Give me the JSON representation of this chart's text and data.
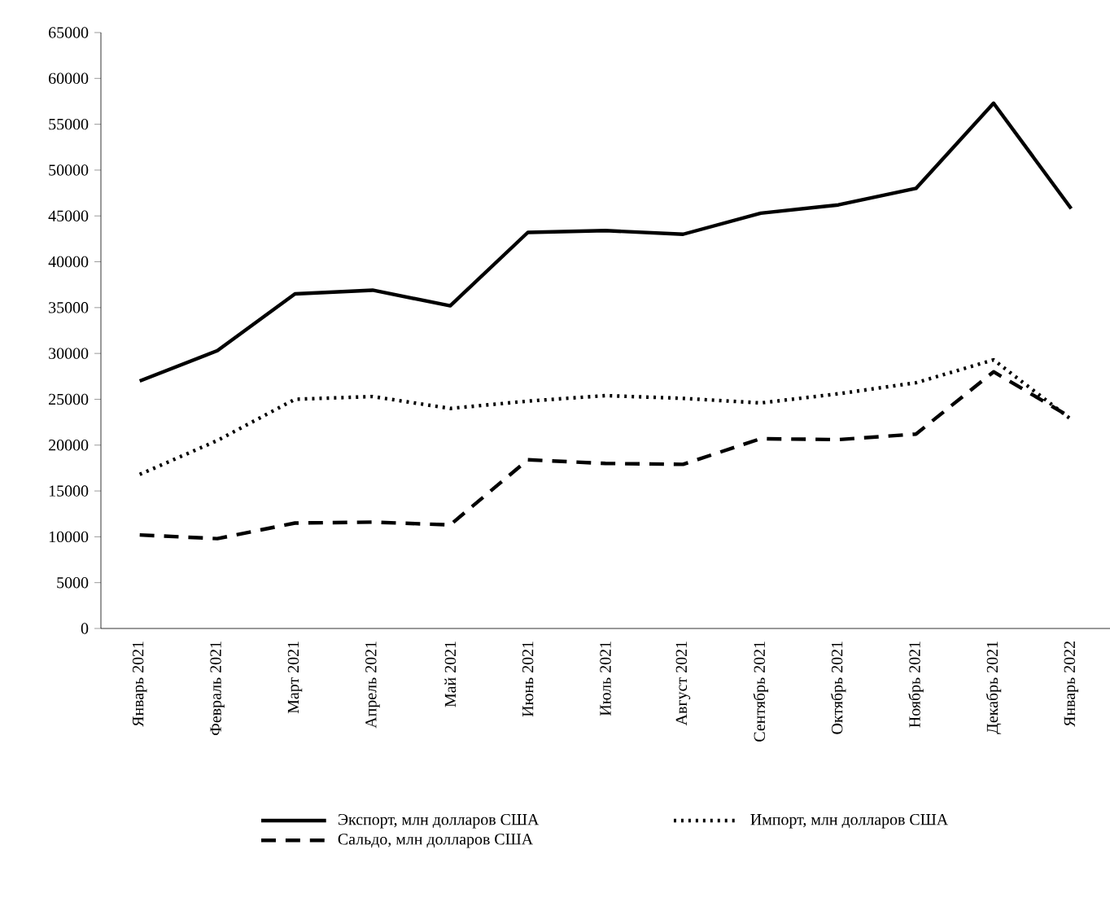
{
  "chart_data": {
    "type": "line",
    "categories": [
      "Январь 2021",
      "Февраль 2021",
      "Март 2021",
      "Апрель 2021",
      "Май 2021",
      "Июнь 2021",
      "Июль 2021",
      "Август 2021",
      "Сентябрь 2021",
      "Октябрь 2021",
      "Ноябрь 2021",
      "Декабрь 2021",
      "Январь 2022"
    ],
    "series": [
      {
        "name": "Экспорт,  млн долларов США",
        "color": "#000000",
        "line_style": "solid",
        "values": [
          27000,
          30300,
          36500,
          36900,
          35200,
          43200,
          43400,
          43000,
          45300,
          46200,
          48000,
          57300,
          45800
        ]
      },
      {
        "name": "Импорт, млн долларов США",
        "color": "#000000",
        "line_style": "dotted",
        "values": [
          16800,
          20500,
          25000,
          25300,
          24000,
          24800,
          25400,
          25100,
          24600,
          25600,
          26800,
          29300,
          22800
        ]
      },
      {
        "name": "Сальдо, млн долларов США",
        "color": "#000000",
        "line_style": "dashed",
        "values": [
          10200,
          9800,
          11500,
          11600,
          11300,
          18400,
          18000,
          17900,
          20700,
          20600,
          21200,
          28000,
          23000
        ]
      }
    ],
    "ylim": [
      0,
      65000
    ],
    "yticks": [
      0,
      5000,
      10000,
      15000,
      20000,
      25000,
      30000,
      35000,
      40000,
      45000,
      50000,
      55000,
      60000,
      65000
    ],
    "legend": "bottom",
    "grid": false,
    "marker": "none"
  }
}
